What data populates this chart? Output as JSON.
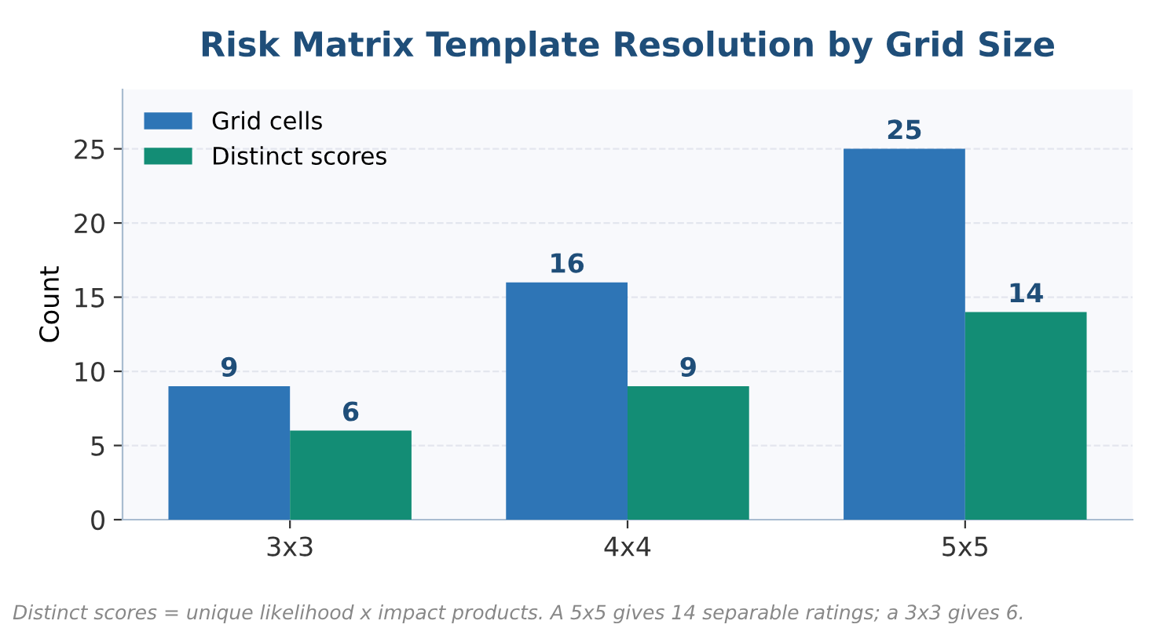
{
  "chart_data": {
    "type": "bar",
    "title": "Risk Matrix Template Resolution by Grid Size",
    "ylabel": "Count",
    "categories": [
      "3x3",
      "4x4",
      "5x5"
    ],
    "series": [
      {
        "name": "Grid cells",
        "color": "#2e75b6",
        "values": [
          9,
          16,
          25
        ]
      },
      {
        "name": "Distinct scores",
        "color": "#138d75",
        "values": [
          6,
          9,
          14
        ]
      }
    ],
    "ylim": [
      0,
      29
    ],
    "yticks": [
      0,
      5,
      10,
      15,
      20,
      25
    ],
    "grid": "y",
    "legend": "top left",
    "data_labels": true,
    "annotations": [
      "Distinct scores = unique likelihood x impact products. A 5x5 gives 14 separable ratings; a 3x3 gives 6."
    ]
  }
}
